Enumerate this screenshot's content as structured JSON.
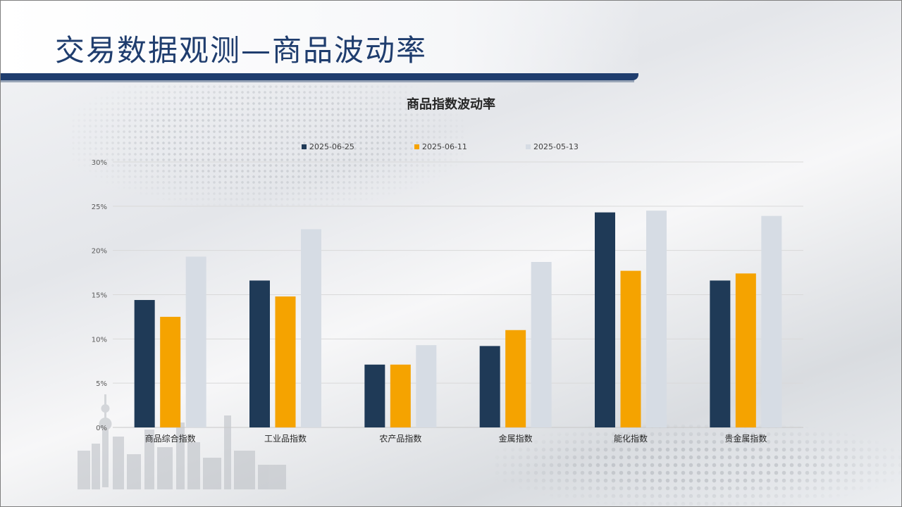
{
  "page": {
    "title": "交易数据观测—商品波动率"
  },
  "chart_data": {
    "type": "bar",
    "title": "商品指数波动率",
    "categories": [
      "商品综合指数",
      "工业品指数",
      "农产品指数",
      "金属指数",
      "能化指数",
      "贵金属指数"
    ],
    "series": [
      {
        "name": "2025-06-25",
        "color": "#1f3a57",
        "values": [
          14.4,
          16.6,
          7.1,
          9.2,
          24.3,
          16.6
        ]
      },
      {
        "name": "2025-06-11",
        "color": "#f5a300",
        "values": [
          12.5,
          14.8,
          7.1,
          11.0,
          17.7,
          17.4
        ]
      },
      {
        "name": "2025-05-13",
        "color": "#d6dce4",
        "values": [
          19.3,
          22.4,
          9.3,
          18.7,
          24.5,
          23.9
        ]
      }
    ],
    "yticks": [
      "0%",
      "5%",
      "10%",
      "15%",
      "20%",
      "25%",
      "30%"
    ],
    "ylim": [
      0,
      30
    ],
    "grid": true,
    "legend_position": "top"
  }
}
